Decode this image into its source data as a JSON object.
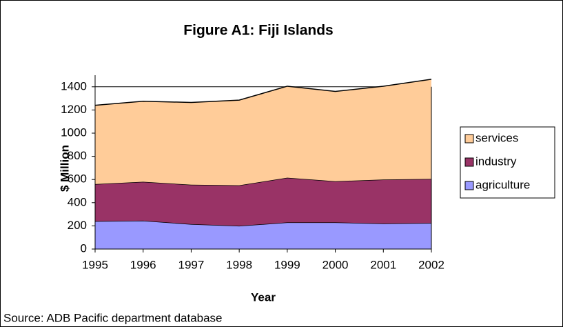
{
  "chart_data": {
    "type": "stacked-area",
    "title": "Figure A1: Fiji Islands",
    "x_label": "Year",
    "y_label": "$ Million",
    "source": "Source: ADB Pacific department database",
    "categories": [
      "1995",
      "1996",
      "1997",
      "1998",
      "1999",
      "2000",
      "2001",
      "2002"
    ],
    "series": [
      {
        "name": "agriculture",
        "color": "#9999ff",
        "values": [
          240,
          245,
          215,
          200,
          230,
          230,
          220,
          225
        ]
      },
      {
        "name": "industry",
        "color": "#993366",
        "values": [
          320,
          335,
          340,
          350,
          385,
          355,
          380,
          380
        ]
      },
      {
        "name": "services",
        "color": "#ffcc99",
        "values": [
          680,
          695,
          710,
          735,
          790,
          775,
          805,
          860
        ]
      }
    ],
    "ylim": [
      0,
      1500
    ],
    "yticks": [
      0,
      200,
      400,
      600,
      800,
      1000,
      1200,
      1400
    ],
    "grid": true,
    "legend": "right"
  }
}
